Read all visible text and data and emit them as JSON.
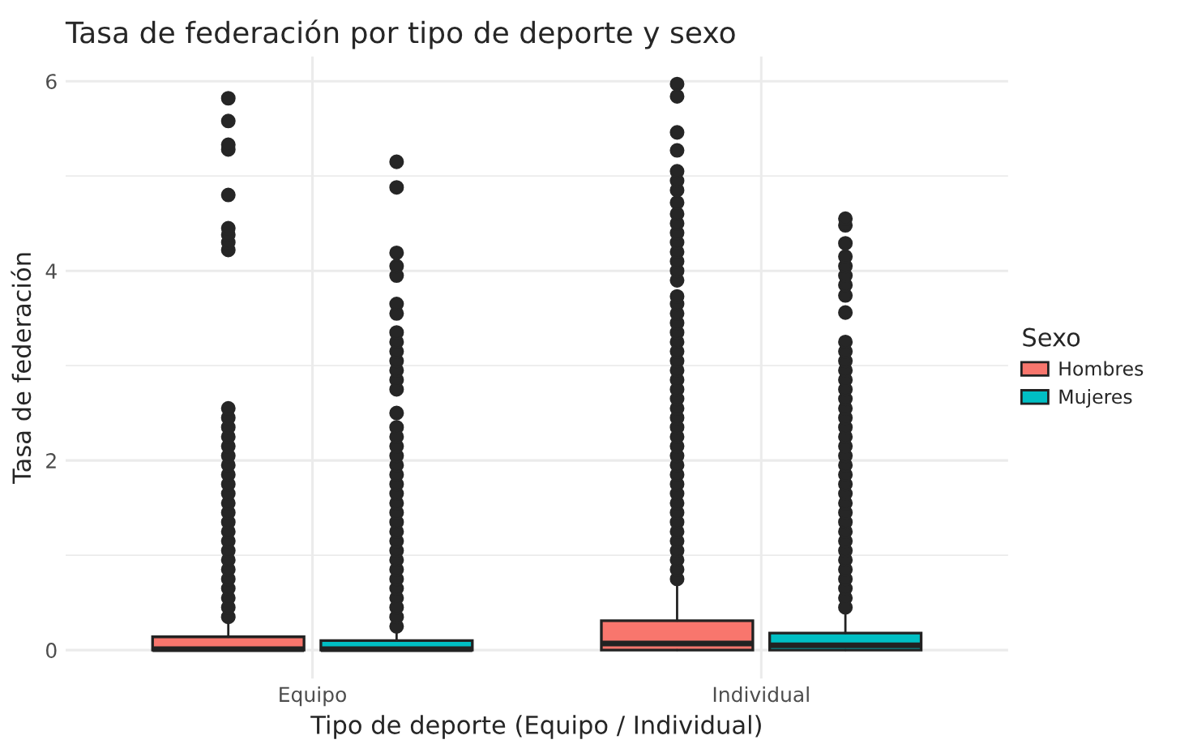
{
  "chart_data": {
    "type": "box",
    "title": "Tasa de federación por tipo de deporte y sexo",
    "xlabel": "Tipo de deporte (Equipo / Individual)",
    "ylabel": "Tasa de federación",
    "legend_title": "Sexo",
    "categories": [
      "Equipo",
      "Individual"
    ],
    "series": [
      {
        "name": "Hombres",
        "color": "#f8766d",
        "boxes": [
          {
            "low": 0,
            "q1": 0,
            "median": 0.01,
            "q3": 0.14,
            "high": 0.3,
            "outliers": [
              0.35,
              0.45,
              0.55,
              0.65,
              0.75,
              0.85,
              0.95,
              1.05,
              1.15,
              1.25,
              1.35,
              1.45,
              1.55,
              1.65,
              1.75,
              1.85,
              1.95,
              2.05,
              2.15,
              2.25,
              2.35,
              2.45,
              2.55,
              4.22,
              4.3,
              4.38,
              4.45,
              4.8,
              5.28,
              5.33,
              5.58,
              5.82
            ]
          },
          {
            "low": 0,
            "q1": 0,
            "median": 0.07,
            "q3": 0.31,
            "high": 0.72,
            "outliers": [
              0.75,
              0.85,
              0.95,
              1.05,
              1.15,
              1.25,
              1.35,
              1.45,
              1.55,
              1.65,
              1.75,
              1.85,
              1.95,
              2.05,
              2.15,
              2.25,
              2.35,
              2.45,
              2.55,
              2.65,
              2.75,
              2.85,
              2.95,
              3.05,
              3.15,
              3.25,
              3.35,
              3.45,
              3.55,
              3.65,
              3.73,
              3.9,
              4.0,
              4.1,
              4.2,
              4.3,
              4.4,
              4.5,
              4.6,
              4.72,
              4.85,
              4.95,
              5.05,
              5.27,
              5.46,
              5.84,
              5.97
            ]
          }
        ]
      },
      {
        "name": "Mujeres",
        "color": "#00bfc4",
        "boxes": [
          {
            "low": 0,
            "q1": 0,
            "median": 0.01,
            "q3": 0.1,
            "high": 0.2,
            "outliers": [
              0.25,
              0.35,
              0.45,
              0.55,
              0.65,
              0.75,
              0.85,
              0.95,
              1.05,
              1.15,
              1.25,
              1.35,
              1.45,
              1.55,
              1.65,
              1.75,
              1.85,
              1.95,
              2.05,
              2.15,
              2.25,
              2.35,
              2.5,
              2.75,
              2.85,
              2.95,
              3.05,
              3.15,
              3.25,
              3.35,
              3.55,
              3.65,
              3.95,
              4.05,
              4.19,
              4.88,
              5.15
            ]
          },
          {
            "low": 0,
            "q1": 0,
            "median": 0.05,
            "q3": 0.18,
            "high": 0.43,
            "outliers": [
              0.45,
              0.55,
              0.65,
              0.75,
              0.85,
              0.95,
              1.05,
              1.15,
              1.25,
              1.35,
              1.45,
              1.55,
              1.65,
              1.75,
              1.85,
              1.95,
              2.05,
              2.15,
              2.25,
              2.35,
              2.45,
              2.55,
              2.65,
              2.75,
              2.85,
              2.95,
              3.05,
              3.15,
              3.25,
              3.56,
              3.74,
              3.85,
              3.95,
              4.05,
              4.15,
              4.29,
              4.48,
              4.55
            ]
          }
        ]
      }
    ],
    "ylim": [
      -0.3,
      6.26
    ],
    "yticks": [
      0,
      2,
      4,
      6
    ],
    "grid": true,
    "legend": "right"
  }
}
